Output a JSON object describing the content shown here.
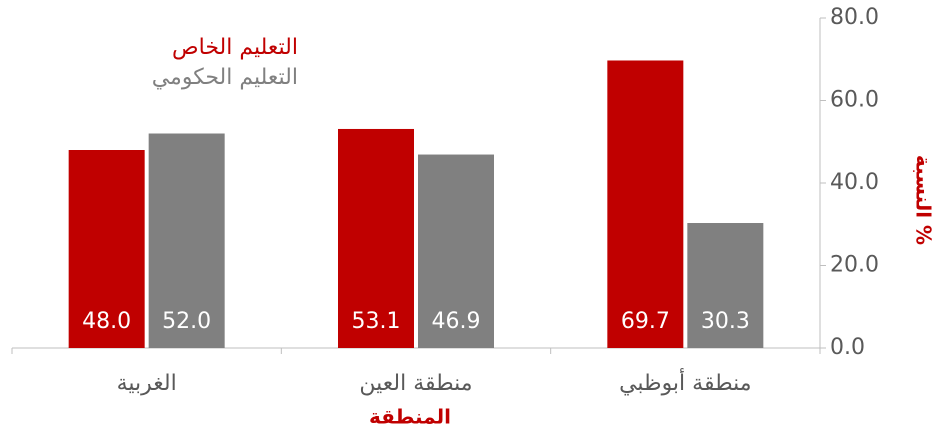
{
  "chart_data": {
    "type": "bar",
    "x_label": "المنطقة",
    "y_label": "النسبة %",
    "categories": [
      "منطقة أبوظبي",
      "منطقة العين",
      "الغربية"
    ],
    "series": [
      {
        "name": "التعليم الخاص",
        "color": "#c00000",
        "values": [
          69.7,
          53.1,
          48.0
        ],
        "value_labels": [
          "69.7",
          "53.1",
          "48.0"
        ]
      },
      {
        "name": "التعليم الحكومي",
        "color": "#808080",
        "values": [
          30.3,
          46.9,
          52.0
        ],
        "value_labels": [
          "30.3",
          "46.9",
          "52.0"
        ]
      }
    ],
    "ylim": [
      0,
      80
    ],
    "yticks": [
      {
        "value": 0,
        "label": "0.0"
      },
      {
        "value": 20,
        "label": "20.0"
      },
      {
        "value": 40,
        "label": "40.0"
      },
      {
        "value": 60,
        "label": "60.0"
      },
      {
        "value": 80,
        "label": "80.0"
      }
    ],
    "y_axis_side": "right",
    "grid": false,
    "legend": "top-left"
  }
}
